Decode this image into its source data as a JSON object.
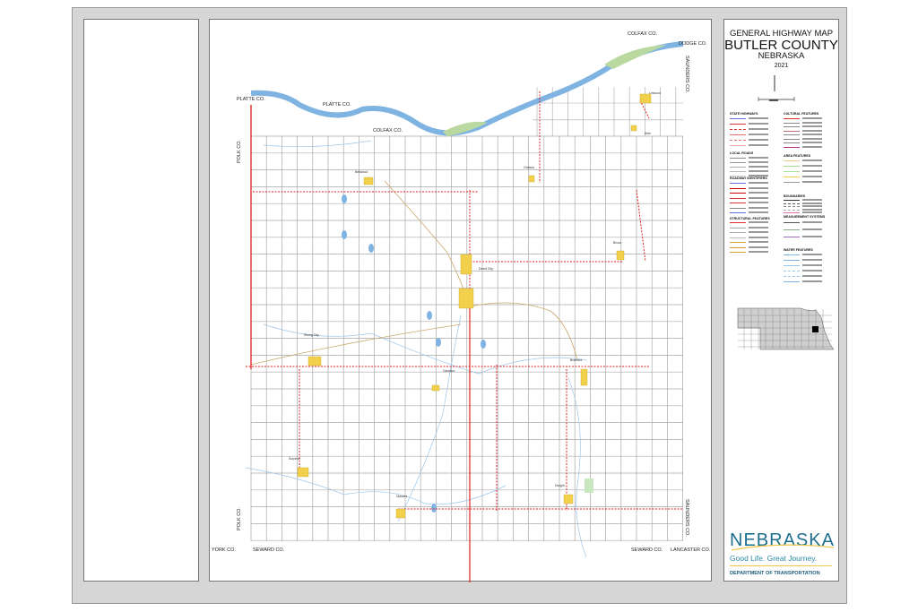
{
  "title_block": {
    "line1": "GENERAL HIGHWAY MAP",
    "line2": "BUTLER COUNTY",
    "line3": "NEBRASKA",
    "year": "2021"
  },
  "counties": {
    "platte_1": "PLATTE CO.",
    "platte_2": "PLATTE CO.",
    "colfax_1": "COLFAX CO.",
    "colfax_2": "COLFAX CO.",
    "dodge": "DODGE CO.",
    "saunders_1": "SAUNDERS CO.",
    "saunders_2": "SAUNDERS CO.",
    "polk_1": "POLK CO.",
    "polk_2": "POLK CO.",
    "york": "YORK CO.",
    "seward_1": "SEWARD CO.",
    "seward_2": "SEWARD CO.",
    "lancaster": "LANCASTER CO."
  },
  "towns": [
    "Bellwood",
    "Octavia",
    "Linwood",
    "Abie",
    "Bruno",
    "David City",
    "Rising City",
    "Garrison",
    "Brainard",
    "Surprise",
    "Ulysses",
    "Dwight"
  ],
  "legend": {
    "left_headings": [
      "STATE HIGHWAYS",
      "LOCAL ROADS",
      "ROADWAY IDENTIFIERS",
      "STRUCTURAL FEATURES"
    ],
    "right_headings": [
      "CULTURAL FEATURES",
      "AREA FEATURES",
      "BOUNDARIES",
      "MEASUREMENT SYSTEMS",
      "WATER FEATURES"
    ]
  },
  "logo": {
    "wordmark": "NEBRASKA",
    "tagline": "Good Life. Great Journey.",
    "department": "DEPARTMENT OF TRANSPORTATION"
  },
  "colors": {
    "highway": "#e02020",
    "river": "#7fb4e2",
    "town": "#f2d04b",
    "grid": "#a8a8a8",
    "brand_teal": "#1d6f8e"
  }
}
